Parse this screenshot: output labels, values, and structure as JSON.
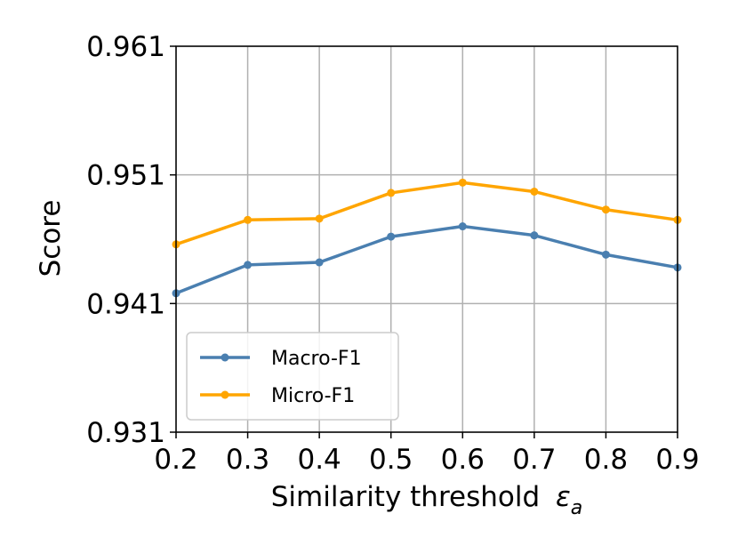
{
  "chart_data": {
    "type": "line",
    "xlabel": "Similarity threshold",
    "xlabel_symbol": "ε",
    "xlabel_subscript": "a",
    "ylabel": "Score",
    "x": [
      0.2,
      0.3,
      0.4,
      0.5,
      0.6,
      0.7,
      0.8,
      0.9
    ],
    "xlim": [
      0.2,
      0.9
    ],
    "ylim": [
      0.931,
      0.961
    ],
    "xticks": [
      "0.2",
      "0.3",
      "0.4",
      "0.5",
      "0.6",
      "0.7",
      "0.8",
      "0.9"
    ],
    "yticks": [
      {
        "value": 0.931,
        "label": "0.931"
      },
      {
        "value": 0.941,
        "label": "0.941"
      },
      {
        "value": 0.951,
        "label": "0.951"
      },
      {
        "value": 0.961,
        "label": "0.961"
      }
    ],
    "grid": true,
    "legend_position": "lower-left",
    "series": [
      {
        "name": "Macro-F1",
        "color": "#4a7fb0",
        "values": [
          0.9418,
          0.944,
          0.9442,
          0.9462,
          0.947,
          0.9463,
          0.9448,
          0.9438
        ]
      },
      {
        "name": "Micro-F1",
        "color": "#ffa500",
        "values": [
          0.9456,
          0.9475,
          0.9476,
          0.9496,
          0.9504,
          0.9497,
          0.9483,
          0.9475
        ]
      }
    ]
  }
}
